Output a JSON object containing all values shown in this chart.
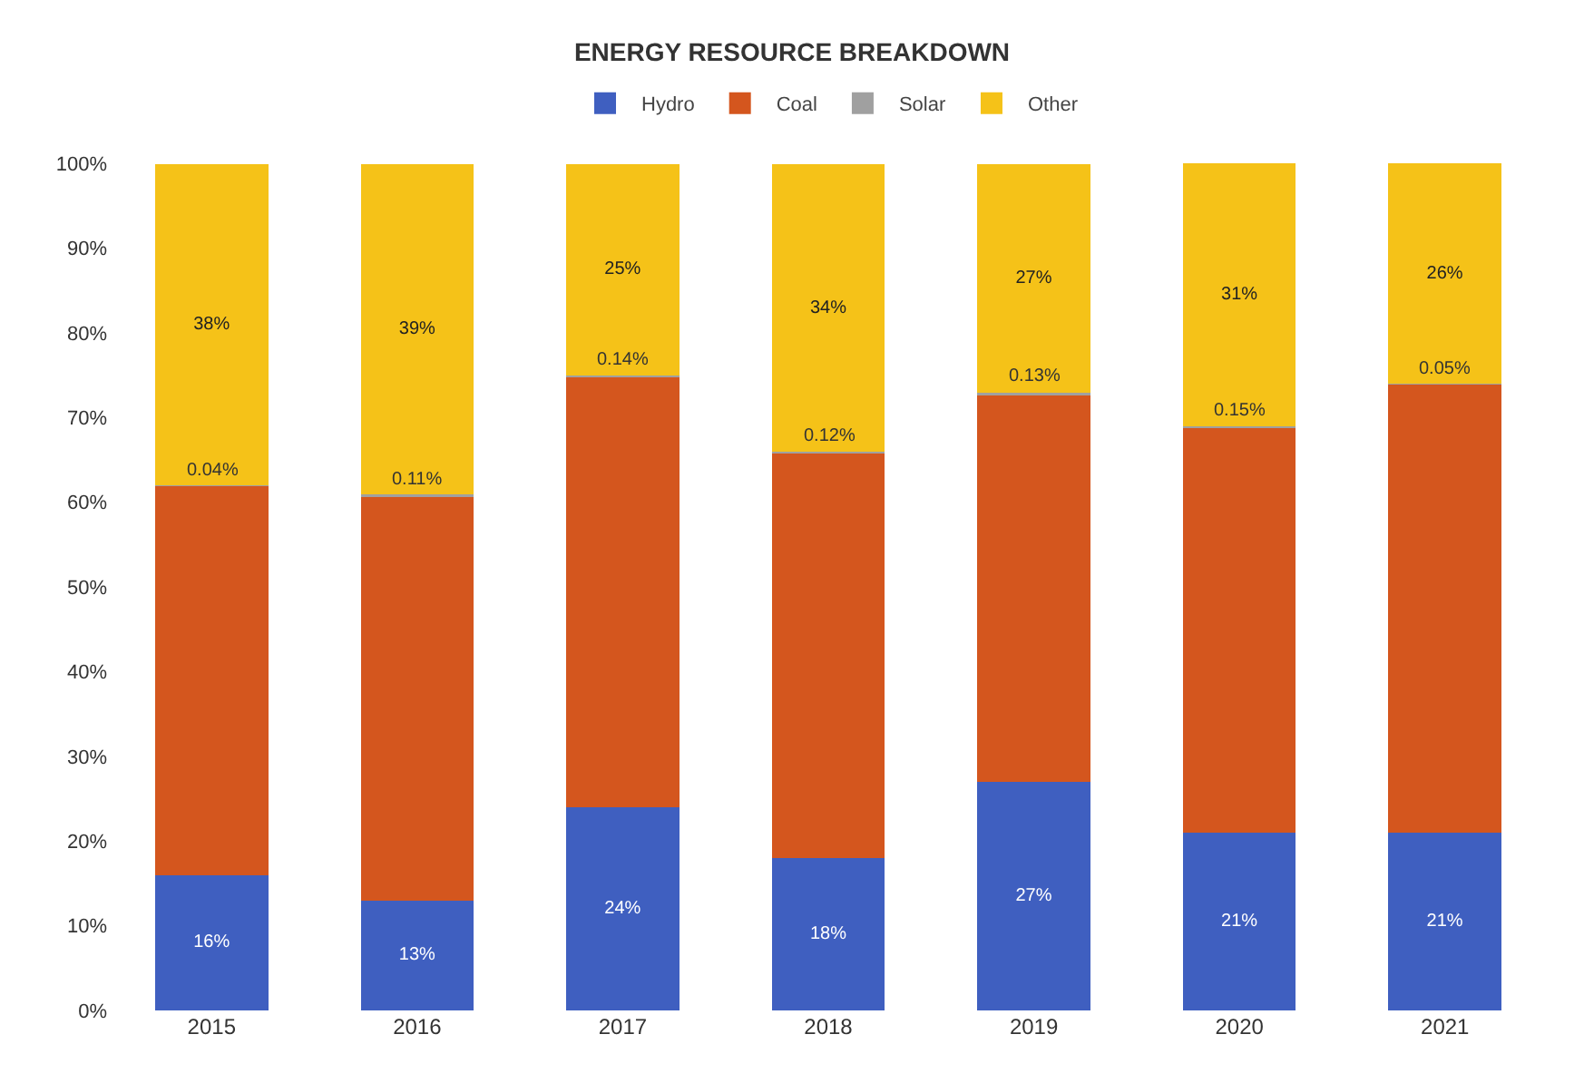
{
  "chart_data": {
    "type": "bar",
    "title": "ENERGY RESOURCE BREAKDOWN",
    "stacked": true,
    "legend": "top",
    "categories": [
      "2015",
      "2016",
      "2017",
      "2018",
      "2019",
      "2020",
      "2021"
    ],
    "ylim": [
      0,
      100
    ],
    "yticks": [
      {
        "value": 0,
        "label": "0%"
      },
      {
        "value": 10,
        "label": "10%"
      },
      {
        "value": 20,
        "label": "20%"
      },
      {
        "value": 30,
        "label": "30%"
      },
      {
        "value": 40,
        "label": "40%"
      },
      {
        "value": 50,
        "label": "50%"
      },
      {
        "value": 60,
        "label": "60%"
      },
      {
        "value": 70,
        "label": "70%"
      },
      {
        "value": 80,
        "label": "80%"
      },
      {
        "value": 90,
        "label": "90%"
      },
      {
        "value": 100,
        "label": "100%"
      }
    ],
    "series": [
      {
        "name": "Hydro",
        "color": "#3f5fc0",
        "values": [
          16,
          13,
          24,
          18,
          27,
          21,
          21
        ],
        "value_labels": [
          "16%",
          "13%",
          "24%",
          "18%",
          "27%",
          "21%",
          "21%"
        ]
      },
      {
        "name": "Coal",
        "color": "#d4561e",
        "values": [
          45.9,
          47.8,
          50.8,
          47.8,
          45.8,
          47.8,
          52.9
        ]
      },
      {
        "name": "Solar",
        "color": "#a0a0a0",
        "values": [
          0.04,
          0.11,
          0.14,
          0.12,
          0.13,
          0.15,
          0.05
        ],
        "value_labels": [
          "0.04%",
          "0.11%",
          "0.14%",
          "0.12%",
          "0.13%",
          "0.15%",
          "0.05%"
        ]
      },
      {
        "name": "Other",
        "color": "#f5c218",
        "values": [
          38,
          39,
          25,
          34,
          27,
          31,
          26
        ],
        "value_labels": [
          "38%",
          "39%",
          "25%",
          "34%",
          "27%",
          "31%",
          "26%"
        ]
      }
    ]
  }
}
